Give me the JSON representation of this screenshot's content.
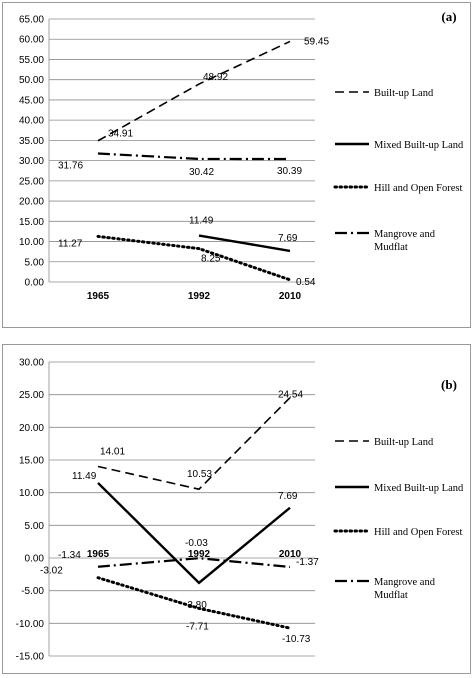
{
  "chart_data": [
    {
      "type": "line",
      "panel_label": "(a)",
      "categories": [
        "1965",
        "1992",
        "2010"
      ],
      "ylim": [
        0,
        65
      ],
      "y_ticks": [
        "0.00",
        "5.00",
        "10.00",
        "15.00",
        "20.00",
        "25.00",
        "30.00",
        "35.00",
        "40.00",
        "45.00",
        "50.00",
        "55.00",
        "60.00",
        "65.00"
      ],
      "grid": true,
      "legend_position": "right",
      "series": [
        {
          "name": "Built-up Land",
          "style": "dashed",
          "values": [
            34.91,
            48.92,
            59.45
          ],
          "labels": [
            "34.91",
            "48.92",
            "59.45"
          ]
        },
        {
          "name": "Mixed Built-up Land",
          "style": "solid",
          "values": [
            null,
            11.49,
            7.69
          ],
          "labels": [
            "",
            "11.49",
            "7.69"
          ]
        },
        {
          "name": "Hill and Open Forest",
          "style": "dotted",
          "values": [
            11.27,
            8.25,
            0.54
          ],
          "labels": [
            "11.27",
            "8.25",
            "0.54"
          ]
        },
        {
          "name": "Mangrove and Mudflat",
          "style": "dashdot",
          "values": [
            31.76,
            30.42,
            30.39
          ],
          "labels": [
            "31.76",
            "30.42",
            "30.39"
          ]
        }
      ]
    },
    {
      "type": "line",
      "panel_label": "(b)",
      "categories": [
        "1965",
        "1992",
        "2010"
      ],
      "ylim": [
        -15,
        30
      ],
      "y_ticks": [
        "-15.00",
        "-10.00",
        "-5.00",
        "0.00",
        "5.00",
        "10.00",
        "15.00",
        "20.00",
        "25.00",
        "30.00"
      ],
      "grid": true,
      "legend_position": "right",
      "series": [
        {
          "name": "Built-up Land",
          "style": "dashed",
          "values": [
            14.01,
            10.53,
            24.54
          ],
          "labels": [
            "14.01",
            "10.53",
            "24.54"
          ]
        },
        {
          "name": "Mixed Built-up Land",
          "style": "solid",
          "values": [
            11.49,
            -3.8,
            7.69
          ],
          "labels": [
            "11.49",
            "-3.80",
            "7.69"
          ]
        },
        {
          "name": "Hill and Open Forest",
          "style": "dotted",
          "values": [
            -3.02,
            -7.71,
            -10.73
          ],
          "labels": [
            "-3.02",
            "-7.71",
            "-10.73"
          ]
        },
        {
          "name": "Mangrove and Mudflat",
          "style": "dashdot",
          "values": [
            -1.34,
            -0.03,
            -1.37
          ],
          "labels": [
            "-1.34",
            "-0.03",
            "-1.37"
          ]
        }
      ]
    }
  ]
}
